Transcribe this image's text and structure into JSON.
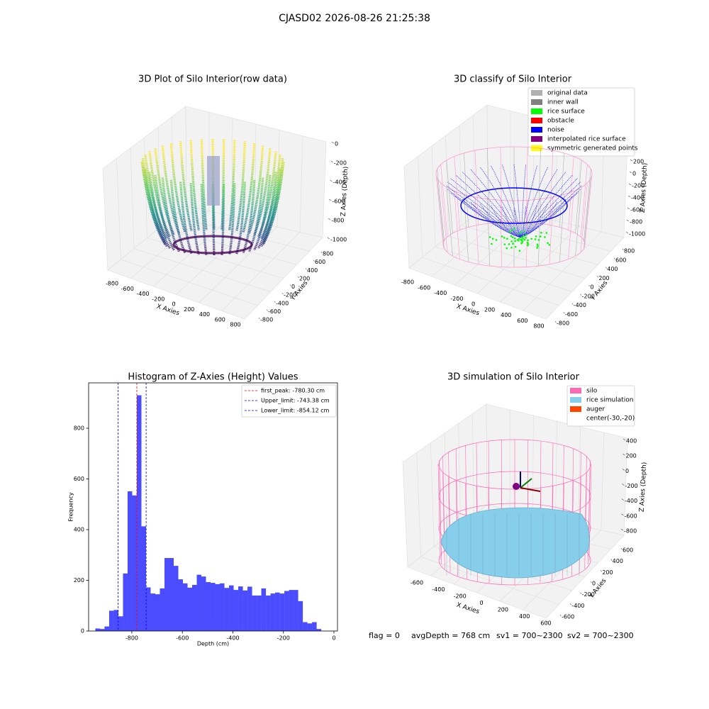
{
  "title": "CJASD02 2026-08-26 21:25:38",
  "chart_data": [
    {
      "type": "scatter3d",
      "title": "3D Plot of Silo Interior(row data)",
      "xlabel": "X Axies",
      "ylabel": "Y Axies",
      "zlabel": "Z Axies (Depth)",
      "xticks": [
        -800,
        -600,
        -400,
        -200,
        0,
        200,
        400,
        600,
        800
      ],
      "yticks": [
        -800,
        -600,
        -400,
        -200,
        0,
        200,
        400,
        600,
        800
      ],
      "zticks": [
        0,
        -200,
        -400,
        -600,
        -800,
        -1000
      ]
    },
    {
      "type": "classify3d",
      "title": "3D classify of Silo Interior",
      "xlabel": "X Axies",
      "ylabel": "Y Axies",
      "zlabel": "Z Axies (Depth)",
      "xticks": [
        -800,
        -600,
        -400,
        -200,
        0,
        200,
        400,
        600,
        800
      ],
      "yticks": [
        -800,
        -600,
        -400,
        -200,
        0,
        200,
        400,
        600,
        800
      ],
      "zticks": [
        200,
        0,
        -200,
        -400,
        -600,
        -800,
        -1000
      ],
      "series": [
        {
          "name": "original data",
          "color": "#b0b0b0"
        },
        {
          "name": "inner wall",
          "color": "#808080"
        },
        {
          "name": "rice surface",
          "color": "#00ff00"
        },
        {
          "name": "obstacle",
          "color": "#ff0000"
        },
        {
          "name": "noise",
          "color": "#0000ff"
        },
        {
          "name": "interpolated rice surface",
          "color": "#800080"
        },
        {
          "name": "symmetric generated points",
          "color": "#ffff00"
        }
      ]
    },
    {
      "type": "histogram",
      "title": "Histogram of Z-Axies (Height) Values",
      "xlabel": "Depth (cm)",
      "ylabel": "Frequency",
      "bins": [
        -944.5,
        -926.25,
        -908,
        -889.75,
        -871.5,
        -853.25,
        -835,
        -816.75,
        -798.5,
        -780.25,
        -762,
        -743.75,
        -725.5,
        -707.25,
        -689,
        -670.75,
        -652.5,
        -634.25,
        -616,
        -597.75,
        -579.5,
        -561.25,
        -543,
        -524.75,
        -506.5,
        -488.25,
        -470,
        -451.75,
        -433.5,
        -415.25,
        -397,
        -378.75,
        -360.5,
        -342.25,
        -324,
        -305.75,
        -287.5,
        -269.25,
        -251,
        -232.75,
        -214.5,
        -196.25,
        -178,
        -159.75,
        -141.5,
        -123.25,
        -105,
        -86.75,
        -68.5,
        -50.25
      ],
      "values": [
        10,
        8,
        18,
        80,
        83,
        58,
        227,
        551,
        535,
        930,
        413,
        172,
        148,
        145,
        168,
        288,
        288,
        257,
        204,
        188,
        171,
        182,
        222,
        215,
        193,
        190,
        185,
        188,
        170,
        180,
        162,
        176,
        160,
        175,
        140,
        140,
        168,
        140,
        148,
        152,
        148,
        158,
        162,
        162,
        118,
        35,
        30,
        35,
        8
      ],
      "color": "#0000ff",
      "alpha": 0.7,
      "xlim": [
        -971,
        14
      ],
      "ylim": [
        0,
        979
      ],
      "xticks": [
        -800,
        -600,
        -400,
        -200,
        0
      ],
      "yticks": [
        0,
        200,
        400,
        600,
        800
      ],
      "lines": [
        {
          "name": "first_peak: -780.30 cm",
          "value": -780.3,
          "color": "#ff0000"
        },
        {
          "name": "Upper_limit: -743.38 cm",
          "value": -743.38,
          "color": "#0000ff"
        },
        {
          "name": "Lower_limit: -854.12 cm",
          "value": -854.12,
          "color": "#0000ff"
        }
      ],
      "legend": "upper right"
    },
    {
      "type": "surface3d",
      "title": "3D simulation of Silo Interior",
      "xlabel": "X Axies",
      "ylabel": "Y Axies",
      "zlabel": "Z Axies (Depth)",
      "xticks": [
        -600,
        -400,
        -200,
        0,
        200,
        400,
        600
      ],
      "yticks": [
        -600,
        -400,
        -200,
        0,
        200,
        400,
        600
      ],
      "zticks": [
        400,
        200,
        0,
        -200,
        -400,
        -600,
        -800
      ],
      "series": [
        {
          "name": "silo",
          "color": "#ff69b4"
        },
        {
          "name": "rice simulation",
          "color": "#87ceeb"
        },
        {
          "name": "auger",
          "color": "#ff4500"
        },
        {
          "name": "center(-30,-20)"
        }
      ]
    }
  ],
  "footer": [
    "flag = 0",
    "avgDepth = 768 cm",
    "sv1 = 700~2300",
    "sv2 = 700~2300"
  ]
}
